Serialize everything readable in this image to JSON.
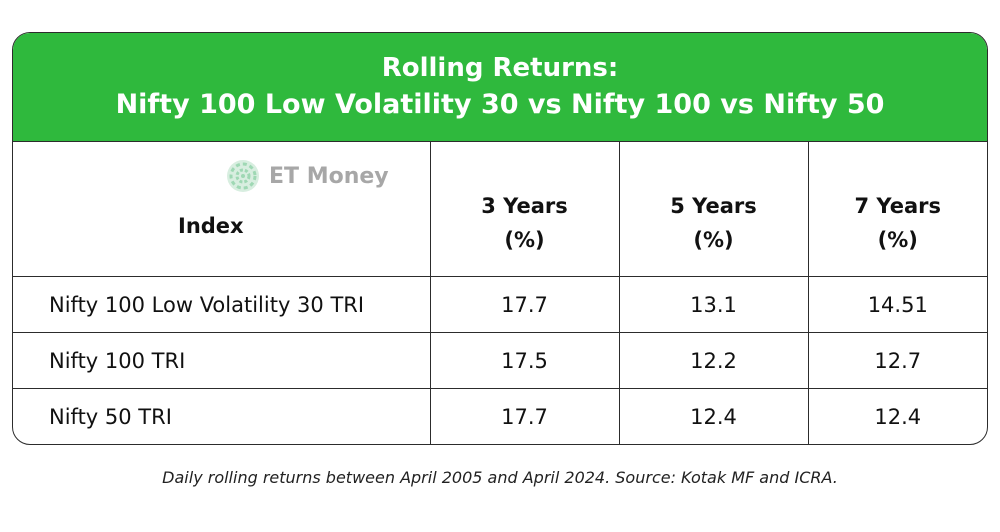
{
  "banner": {
    "title_line1": "Rolling Returns:",
    "title_line2": "Nifty 100 Low Volatility 30 vs Nifty 100 vs Nifty 50"
  },
  "logo": {
    "text": "ET Money",
    "icon": "et-money-logo-icon",
    "color": "#a7a7a7"
  },
  "table": {
    "headers": [
      {
        "line1": "Index",
        "line2": ""
      },
      {
        "line1": "3 Years",
        "line2": "(%)"
      },
      {
        "line1": "5 Years",
        "line2": "(%)"
      },
      {
        "line1": "7 Years",
        "line2": "(%)"
      }
    ],
    "rows": [
      [
        "Nifty 100 Low Volatility 30 TRI",
        "17.7",
        "13.1",
        "14.51"
      ],
      [
        "Nifty 100 TRI",
        "17.5",
        "12.2",
        "12.7"
      ],
      [
        "Nifty 50 TRI",
        "17.7",
        "12.4",
        "12.4"
      ]
    ]
  },
  "footnote": "Daily rolling returns between April 2005 and April 2024. Source: Kotak MF and ICRA.",
  "colors": {
    "banner": "#2fb93d",
    "border": "#2c2c2c"
  }
}
